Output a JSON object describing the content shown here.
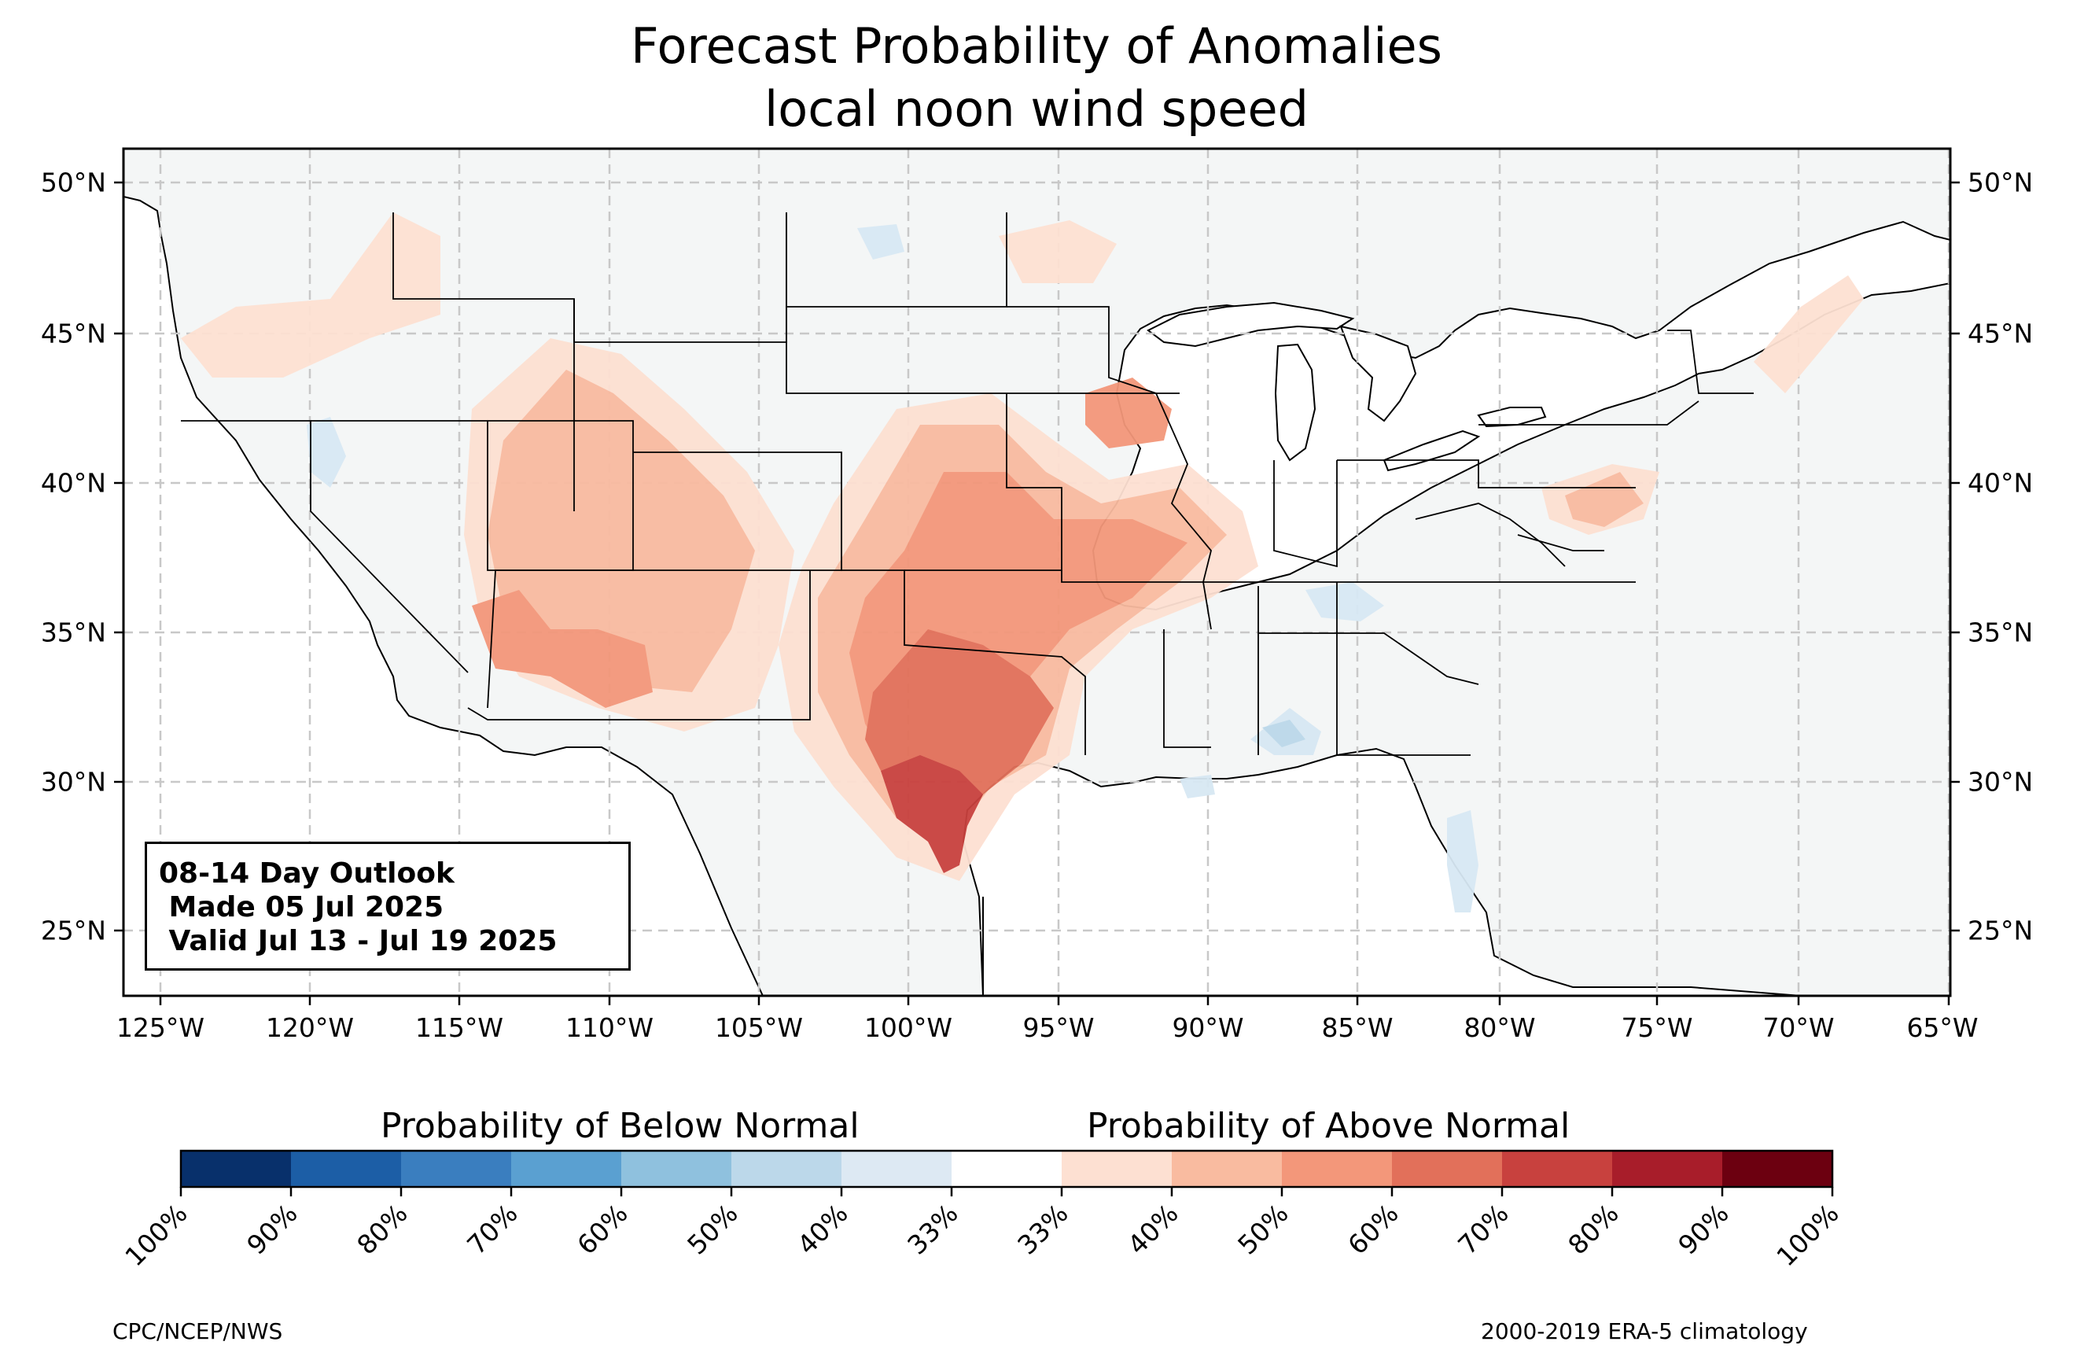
{
  "title_line1": "Forecast Probability of Anomalies",
  "title_line2": "local noon wind speed",
  "outlook": {
    "line1": "08-14 Day Outlook",
    "line2": " Made 05 Jul 2025",
    "line3": " Valid Jul 13 - Jul 19 2025"
  },
  "lat_labels": [
    "50°N",
    "45°N",
    "40°N",
    "35°N",
    "30°N",
    "25°N"
  ],
  "lon_labels": [
    "125°W",
    "120°W",
    "115°W",
    "110°W",
    "105°W",
    "100°W",
    "95°W",
    "90°W",
    "85°W",
    "80°W",
    "75°W",
    "70°W",
    "65°W"
  ],
  "colorbar": {
    "below_label": "Probability of Below Normal",
    "above_label": "Probability of Above Normal",
    "tick_labels": [
      "100%",
      "90%",
      "80%",
      "70%",
      "60%",
      "50%",
      "40%",
      "33%",
      "33%",
      "40%",
      "50%",
      "60%",
      "70%",
      "80%",
      "90%",
      "100%"
    ],
    "colors": [
      "#08306b",
      "#1c5ea6",
      "#3a7ebf",
      "#5aa0d1",
      "#8fc1de",
      "#bcd8ea",
      "#dde9f3",
      "#ffffff",
      "#fde0d2",
      "#f9bba0",
      "#f3977a",
      "#e2705a",
      "#c8413e",
      "#a81d2a",
      "#6c0010"
    ]
  },
  "footer_left": "CPC/NCEP/NWS",
  "footer_right": "2000-2019 ERA-5 climatology",
  "map_colors": {
    "land": "#f4f6f6",
    "p40": "#fde0d2",
    "p50": "#f9bba0",
    "p60": "#f3977a",
    "p70": "#e2705a",
    "p80": "#c8413e",
    "b40": "#d7e8f3",
    "b50": "#bcd8ea"
  }
}
